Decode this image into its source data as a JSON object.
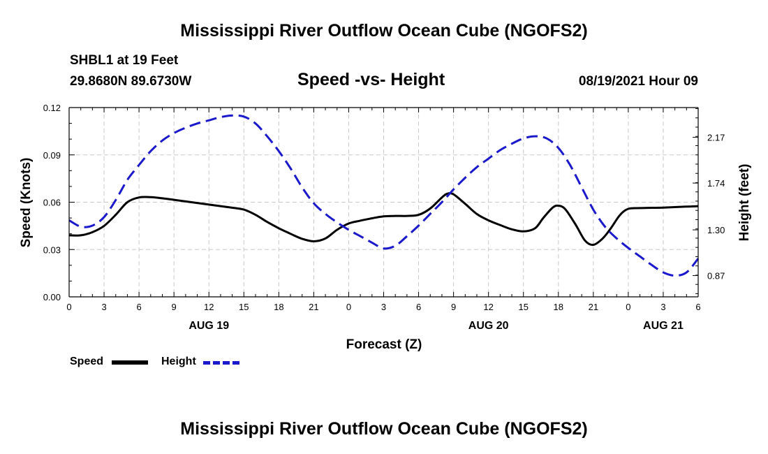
{
  "header": {
    "title": "Mississippi River Outflow Ocean Cube (NGOFS2)",
    "station": "SHBL1 at 19 Feet",
    "coordinates": "29.8680N  89.6730W",
    "subtitle": "Speed -vs- Height",
    "datetime": "08/19/2021 Hour 09"
  },
  "footer": {
    "title": "Mississippi River Outflow Ocean Cube (NGOFS2)"
  },
  "legend": {
    "speed_label": "Speed",
    "height_label": "Height"
  },
  "chart_data": {
    "type": "line",
    "title": "Speed -vs- Height",
    "xlabel": "Forecast (Z)",
    "ylabel_left": "Speed (Knots)",
    "ylabel_right": "Height (feet)",
    "x_range_hours": [
      0,
      54
    ],
    "x_tick_hours": [
      0,
      3,
      6,
      9,
      12,
      15,
      18,
      21,
      24,
      27,
      30,
      33,
      36,
      39,
      42,
      45,
      48,
      51,
      54
    ],
    "x_tick_labels": [
      "0",
      "3",
      "6",
      "9",
      "12",
      "15",
      "18",
      "21",
      "0",
      "3",
      "6",
      "9",
      "12",
      "15",
      "18",
      "21",
      "0",
      "3",
      "6"
    ],
    "day_labels": [
      {
        "label": "AUG 19",
        "hour": 12
      },
      {
        "label": "AUG 20",
        "hour": 36
      },
      {
        "label": "AUG 21",
        "hour": 51
      }
    ],
    "y_left": {
      "range": [
        0,
        0.12
      ],
      "ticks": [
        0.0,
        0.03,
        0.06,
        0.09,
        0.12
      ],
      "tick_labels": [
        "0.00",
        "0.03",
        "0.06",
        "0.09",
        "0.12"
      ]
    },
    "y_right": {
      "range": [
        0.67,
        2.45
      ],
      "ticks": [
        0.87,
        1.3,
        1.74,
        2.17
      ],
      "tick_labels": [
        "0.87",
        "1.30",
        "1.74",
        "2.17"
      ]
    },
    "grid": true,
    "series": [
      {
        "name": "Speed",
        "axis": "left",
        "color": "#000000",
        "style": "solid",
        "points": [
          [
            0,
            0.039
          ],
          [
            1,
            0.039
          ],
          [
            2,
            0.041
          ],
          [
            3,
            0.045
          ],
          [
            4,
            0.052
          ],
          [
            5,
            0.06
          ],
          [
            6,
            0.063
          ],
          [
            7,
            0.0632
          ],
          [
            8,
            0.0625
          ],
          [
            9,
            0.0615
          ],
          [
            10,
            0.0605
          ],
          [
            11,
            0.0595
          ],
          [
            12,
            0.0585
          ],
          [
            13,
            0.0575
          ],
          [
            14,
            0.0565
          ],
          [
            15,
            0.0553
          ],
          [
            16,
            0.052
          ],
          [
            17,
            0.0475
          ],
          [
            18,
            0.0435
          ],
          [
            19,
            0.04
          ],
          [
            20,
            0.0368
          ],
          [
            21,
            0.0352
          ],
          [
            22,
            0.037
          ],
          [
            23,
            0.0425
          ],
          [
            24,
            0.0465
          ],
          [
            25,
            0.0483
          ],
          [
            26,
            0.0498
          ],
          [
            27,
            0.051
          ],
          [
            28,
            0.0513
          ],
          [
            29,
            0.0513
          ],
          [
            30,
            0.052
          ],
          [
            31,
            0.056
          ],
          [
            32,
            0.063
          ],
          [
            32.5,
            0.0655
          ],
          [
            33,
            0.065
          ],
          [
            34,
            0.059
          ],
          [
            35,
            0.0525
          ],
          [
            36,
            0.0485
          ],
          [
            37,
            0.0455
          ],
          [
            38,
            0.0428
          ],
          [
            39,
            0.0415
          ],
          [
            40,
            0.0435
          ],
          [
            40.7,
            0.05
          ],
          [
            41.5,
            0.0565
          ],
          [
            42,
            0.0578
          ],
          [
            42.6,
            0.0555
          ],
          [
            43.5,
            0.0455
          ],
          [
            44.3,
            0.0355
          ],
          [
            45,
            0.033
          ],
          [
            45.8,
            0.037
          ],
          [
            46.5,
            0.0435
          ],
          [
            47.3,
            0.052
          ],
          [
            48,
            0.0558
          ],
          [
            49,
            0.0563
          ],
          [
            51,
            0.0566
          ],
          [
            53,
            0.0572
          ],
          [
            54,
            0.0575
          ]
        ]
      },
      {
        "name": "Height",
        "axis": "right",
        "color": "#1a1acc",
        "style": "dashed",
        "points": [
          [
            0,
            1.39
          ],
          [
            1,
            1.33
          ],
          [
            2,
            1.34
          ],
          [
            3,
            1.42
          ],
          [
            4,
            1.58
          ],
          [
            5,
            1.77
          ],
          [
            6,
            1.91
          ],
          [
            7,
            2.04
          ],
          [
            8,
            2.14
          ],
          [
            9,
            2.21
          ],
          [
            10,
            2.26
          ],
          [
            11,
            2.3
          ],
          [
            12,
            2.33
          ],
          [
            13,
            2.36
          ],
          [
            14,
            2.375
          ],
          [
            15,
            2.365
          ],
          [
            16,
            2.3
          ],
          [
            17,
            2.18
          ],
          [
            18,
            2.04
          ],
          [
            19,
            1.88
          ],
          [
            20,
            1.7
          ],
          [
            21,
            1.55
          ],
          [
            22,
            1.45
          ],
          [
            23,
            1.37
          ],
          [
            24,
            1.3
          ],
          [
            25,
            1.24
          ],
          [
            26,
            1.18
          ],
          [
            27,
            1.125
          ],
          [
            28,
            1.15
          ],
          [
            29,
            1.24
          ],
          [
            30,
            1.34
          ],
          [
            31,
            1.45
          ],
          [
            32,
            1.56
          ],
          [
            33,
            1.68
          ],
          [
            34,
            1.79
          ],
          [
            35,
            1.89
          ],
          [
            36,
            1.97
          ],
          [
            37,
            2.05
          ],
          [
            38,
            2.11
          ],
          [
            39,
            2.16
          ],
          [
            40,
            2.18
          ],
          [
            41,
            2.16
          ],
          [
            42,
            2.07
          ],
          [
            43,
            1.91
          ],
          [
            44,
            1.7
          ],
          [
            45,
            1.49
          ],
          [
            46,
            1.33
          ],
          [
            47,
            1.22
          ],
          [
            48,
            1.13
          ],
          [
            49,
            1.05
          ],
          [
            50,
            0.97
          ],
          [
            51,
            0.9
          ],
          [
            52,
            0.87
          ],
          [
            53,
            0.9
          ],
          [
            54,
            1.03
          ]
        ]
      }
    ]
  }
}
